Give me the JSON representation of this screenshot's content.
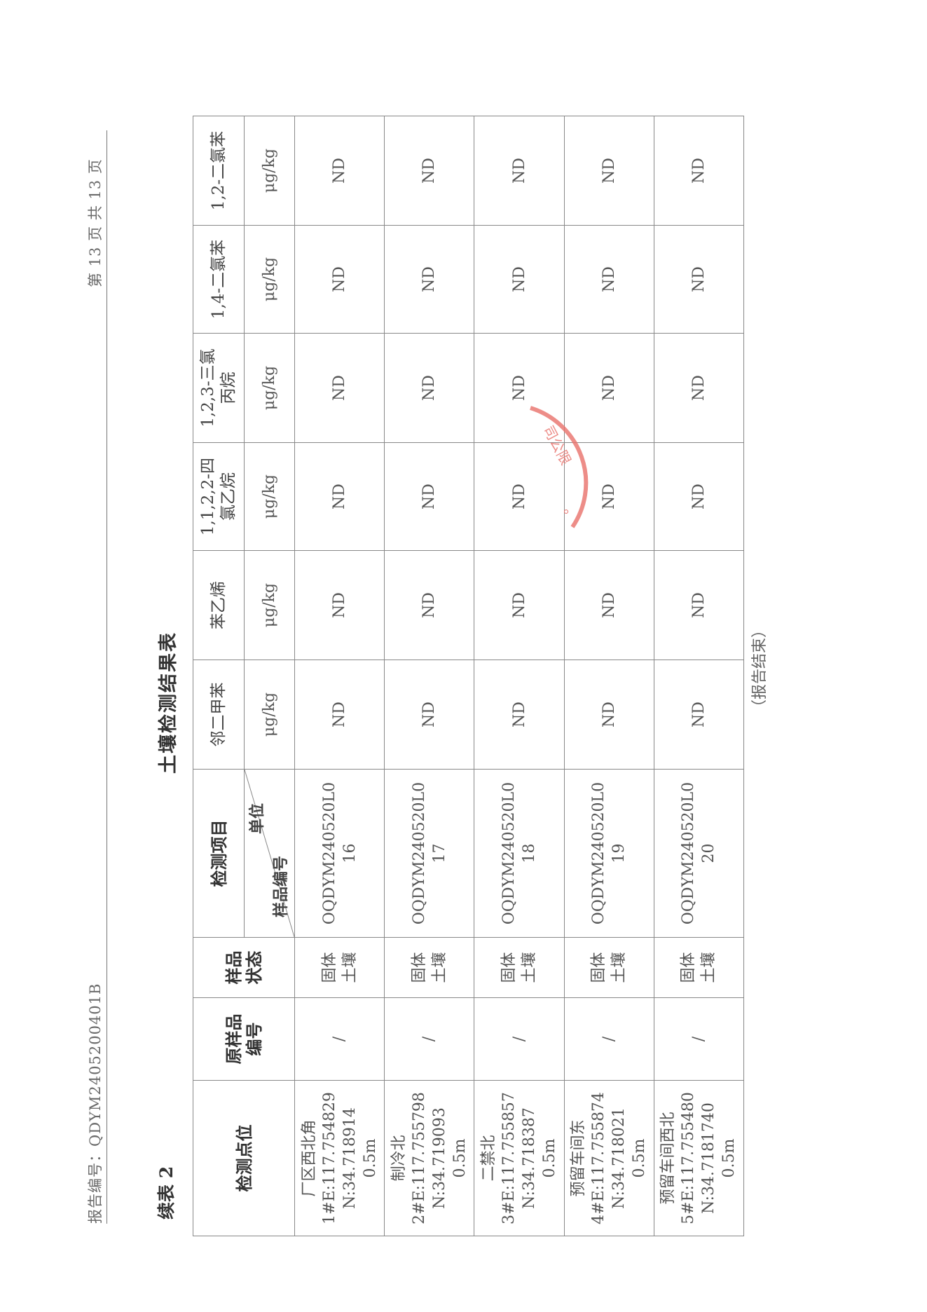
{
  "header": {
    "report_no": "报告编号：QDYM2405200401B",
    "page_info": "第 13 页 共 13 页"
  },
  "table_label": "续表 2",
  "title": "土壤检测结果表",
  "table": {
    "headers": {
      "location": "检测点位",
      "orig_sample_no": "原样品\n编号",
      "sample_state": "样品\n状态",
      "item": "检测项目",
      "unit": "单位",
      "sample_no": "样品编号"
    },
    "analytes": [
      {
        "name": "邻二甲苯",
        "unit": "μg/kg"
      },
      {
        "name": "苯乙烯",
        "unit": "μg/kg"
      },
      {
        "name": "1,1,2,2-四\n氯乙烷",
        "unit": "μg/kg"
      },
      {
        "name": "1,2,3-三氯\n丙烷",
        "unit": "μg/kg"
      },
      {
        "name": "1,4-二氯苯",
        "unit": "μg/kg"
      },
      {
        "name": "1,2-二氯苯",
        "unit": "μg/kg"
      }
    ],
    "rows": [
      {
        "location": "厂区西北角\n1#E:117.754829\nN:34.718914\n0.5m",
        "orig": "/",
        "state": "固体\n土壤",
        "sample_id": "OQDYM240520L0\n16",
        "values": [
          "ND",
          "ND",
          "ND",
          "ND",
          "ND",
          "ND"
        ]
      },
      {
        "location": "制冷北\n2#E:117.755798\nN:34.719093\n0.5m",
        "orig": "/",
        "state": "固体\n土壤",
        "sample_id": "OQDYM240520L0\n17",
        "values": [
          "ND",
          "ND",
          "ND",
          "ND",
          "ND",
          "ND"
        ]
      },
      {
        "location": "二禁北\n3#E:117.755857\nN:34.718387\n0.5m",
        "orig": "/",
        "state": "固体\n土壤",
        "sample_id": "OQDYM240520L0\n18",
        "values": [
          "ND",
          "ND",
          "ND",
          "ND",
          "ND",
          "ND"
        ]
      },
      {
        "location": "预留车间东\n4#E:117.755874\nN:34.718021\n0.5m",
        "orig": "/",
        "state": "固体\n土壤",
        "sample_id": "OQDYM240520L0\n19",
        "values": [
          "ND",
          "ND",
          "ND",
          "ND",
          "ND",
          "ND"
        ]
      },
      {
        "location": "预留车间西北\n5#E:117.755480\nN:34.7181740\n0.5m",
        "orig": "/",
        "state": "固体\n土壤",
        "sample_id": "OQDYM240520L0\n20",
        "values": [
          "ND",
          "ND",
          "ND",
          "ND",
          "ND",
          "ND"
        ]
      }
    ]
  },
  "footer": "（报告结束）",
  "stamp": {
    "text": "司公限",
    "color": "#e8706a"
  }
}
